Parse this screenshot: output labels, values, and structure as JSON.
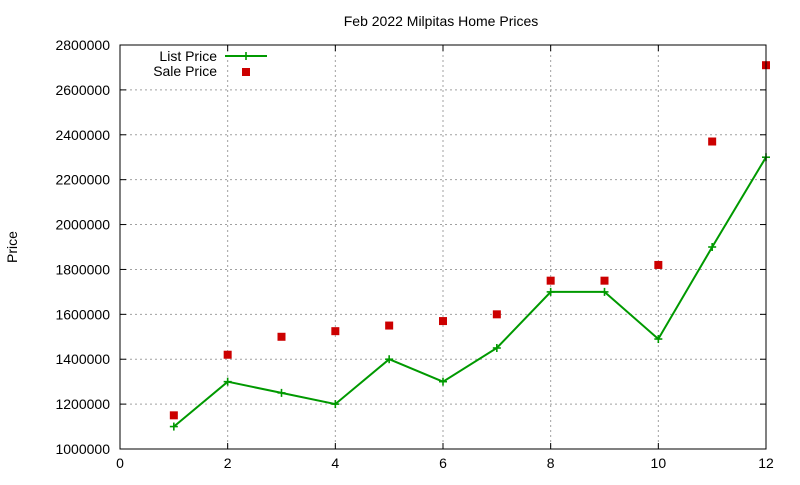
{
  "chart_data": {
    "type": "line",
    "title": "Feb 2022 Milpitas Home Prices",
    "xlabel": "",
    "ylabel": "Price",
    "xlim": [
      0,
      12
    ],
    "ylim": [
      1000000,
      2800000
    ],
    "xticks": [
      0,
      2,
      4,
      6,
      8,
      10,
      12
    ],
    "yticks": [
      1000000,
      1200000,
      1400000,
      1600000,
      1800000,
      2000000,
      2200000,
      2400000,
      2600000,
      2800000
    ],
    "grid": true,
    "legend_position": "top-left",
    "series": [
      {
        "name": "List Price",
        "style": "line-points",
        "marker": "plus",
        "color": "#009900",
        "x": [
          1,
          2,
          3,
          4,
          5,
          6,
          7,
          8,
          9,
          10,
          11,
          12
        ],
        "y": [
          1100000,
          1300000,
          1250000,
          1200000,
          1400000,
          1300000,
          1450000,
          1700000,
          1700000,
          1490000,
          1900000,
          2300000
        ]
      },
      {
        "name": "Sale Price",
        "style": "points",
        "marker": "square",
        "color": "#cc0000",
        "x": [
          1,
          2,
          3,
          4,
          5,
          6,
          7,
          8,
          9,
          10,
          11,
          12
        ],
        "y": [
          1150000,
          1420000,
          1500000,
          1525000,
          1550000,
          1570000,
          1600000,
          1750000,
          1750000,
          1820000,
          2370000,
          2710000
        ]
      }
    ]
  }
}
